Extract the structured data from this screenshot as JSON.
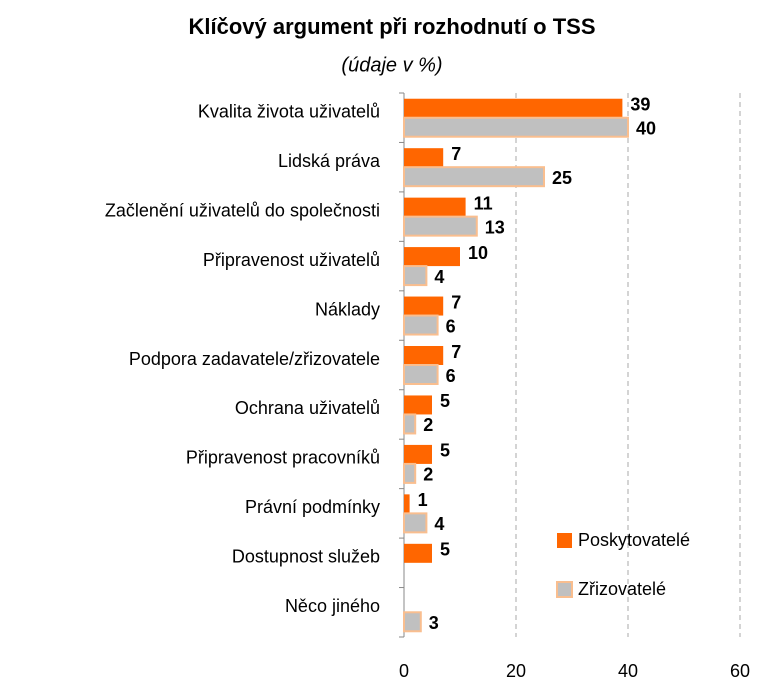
{
  "chart_data": {
    "type": "bar",
    "orientation": "horizontal",
    "title": "Klíčový argument při rozhodnutí o  TSS",
    "subtitle": "(údaje v %)",
    "categories": [
      "Kvalita života  uživatelů",
      "Lidská práva",
      "Začlenění uživatelů do společnosti",
      "Připravenost uživatelů",
      "Náklady",
      "Podpora zadavatele/zřizovatele",
      "Ochrana uživatelů",
      "Připravenost pracovníků",
      "Právní podmínky",
      "Dostupnost služeb",
      "Něco jiného"
    ],
    "series": [
      {
        "name": "Poskytovatelé",
        "color": "#ff6600",
        "values": [
          39,
          7,
          11,
          10,
          7,
          7,
          5,
          5,
          1,
          5,
          null
        ]
      },
      {
        "name": "Zřizovatelé",
        "color": "#c0c0c0",
        "values": [
          40,
          25,
          13,
          4,
          6,
          6,
          2,
          2,
          4,
          null,
          3
        ]
      }
    ],
    "xlim": [
      0,
      60
    ],
    "xticks": [
      0,
      20,
      40,
      60
    ],
    "grid": true,
    "legend": "lower right"
  }
}
